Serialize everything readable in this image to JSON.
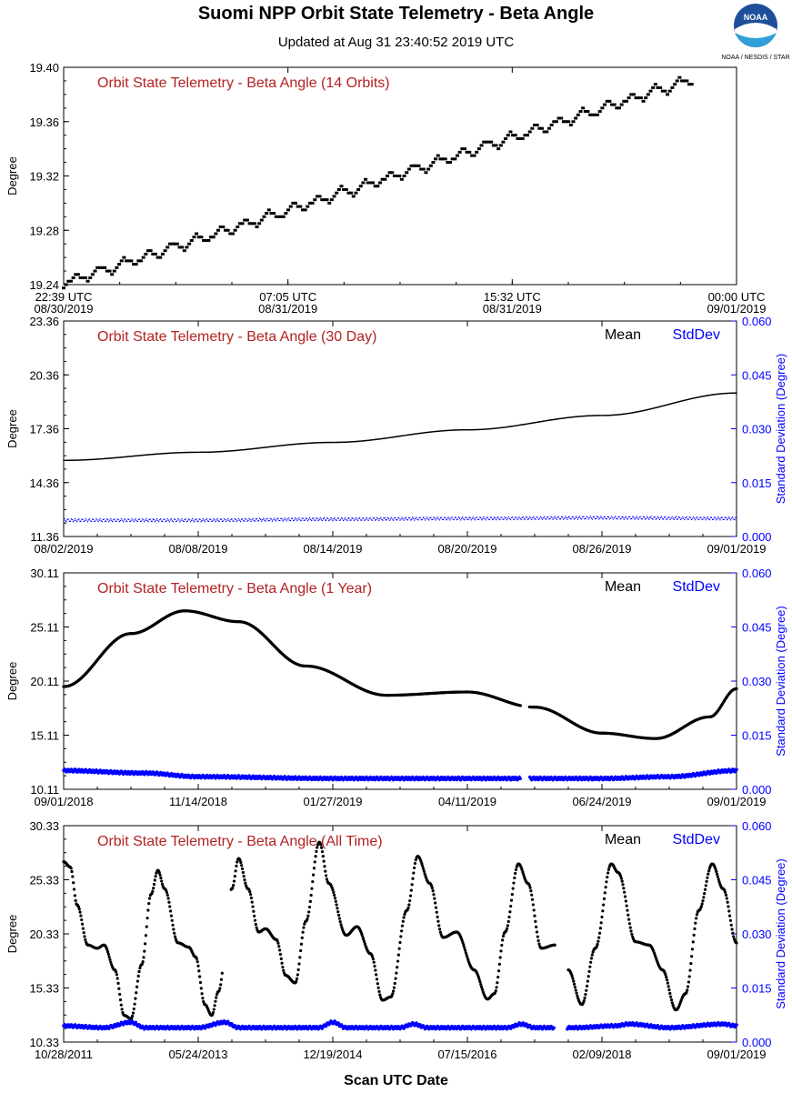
{
  "header": {
    "title": "Suomi NPP Orbit State Telemetry - Beta Angle",
    "subtitle": "Updated at Aug 31 23:40:52 2019 UTC",
    "xlabel": "Scan UTC Date",
    "logo_text": "NOAA",
    "logo_caption": "NOAA / NESDIS / STAR"
  },
  "colors": {
    "title_red": "#b22222",
    "mean": "#000000",
    "stddev": "#0000ff",
    "axis": "#000000"
  },
  "chart_data": [
    {
      "type": "scatter",
      "title": "Orbit State Telemetry - Beta Angle (14 Orbits)",
      "ylabel": "Degree",
      "ylim": [
        19.24,
        19.4
      ],
      "yticks": [
        "19.40",
        "19.36",
        "19.32",
        "19.28",
        "19.24"
      ],
      "xticks": [
        {
          "pos": 0,
          "label": [
            "22:39 UTC",
            "08/30/2019"
          ]
        },
        {
          "pos": 1,
          "label": [
            "07:05 UTC",
            "08/31/2019"
          ]
        },
        {
          "pos": 2,
          "label": [
            "15:32 UTC",
            "08/31/2019"
          ]
        },
        {
          "pos": 3,
          "label": [
            "00:00 UTC",
            "09/01/2019"
          ]
        }
      ],
      "series": [
        {
          "values": {
            "x_start": 0,
            "x_end": 2.8,
            "y_start": 19.241,
            "y_end": 19.391,
            "osc_amp": 0.004,
            "osc_cycles": 26
          }
        }
      ]
    },
    {
      "type": "scatter",
      "title": "Orbit State Telemetry - Beta Angle (30 Day)",
      "ylabel": "Degree",
      "y2label": "Standard Deviation (Degree)",
      "legend": [
        "Mean",
        "StdDev"
      ],
      "ylim": [
        11.36,
        23.36
      ],
      "y2lim": [
        0,
        0.06
      ],
      "yticks": [
        "23.36",
        "20.36",
        "17.36",
        "14.36",
        "11.36"
      ],
      "y2ticks": [
        "0.060",
        "0.045",
        "0.030",
        "0.015",
        "0.000"
      ],
      "xticks": [
        {
          "pos": 0,
          "label": [
            "08/02/2019"
          ]
        },
        {
          "pos": 1,
          "label": [
            "08/08/2019"
          ]
        },
        {
          "pos": 2,
          "label": [
            "08/14/2019"
          ]
        },
        {
          "pos": 3,
          "label": [
            "08/20/2019"
          ]
        },
        {
          "pos": 4,
          "label": [
            "08/26/2019"
          ]
        },
        {
          "pos": 5,
          "label": [
            "09/01/2019"
          ]
        }
      ],
      "mean_points": [
        [
          0,
          15.6
        ],
        [
          1,
          16.05
        ],
        [
          2,
          16.6
        ],
        [
          3,
          17.3
        ],
        [
          4,
          18.1
        ],
        [
          5,
          19.35
        ]
      ],
      "stddev_points": [
        [
          0,
          0.0045
        ],
        [
          1,
          0.0045
        ],
        [
          2,
          0.0048
        ],
        [
          3,
          0.005
        ],
        [
          4,
          0.0052
        ],
        [
          5,
          0.005
        ]
      ]
    },
    {
      "type": "scatter",
      "title": "Orbit State Telemetry - Beta Angle (1 Year)",
      "ylabel": "Degree",
      "y2label": "Standard Deviation (Degree)",
      "legend": [
        "Mean",
        "StdDev"
      ],
      "ylim": [
        10.11,
        30.11
      ],
      "y2lim": [
        0,
        0.06
      ],
      "yticks": [
        "30.11",
        "25.11",
        "20.11",
        "15.11",
        "10.11"
      ],
      "y2ticks": [
        "0.060",
        "0.045",
        "0.030",
        "0.015",
        "0.000"
      ],
      "xticks": [
        {
          "pos": 0,
          "label": [
            "09/01/2018"
          ]
        },
        {
          "pos": 1,
          "label": [
            "11/14/2018"
          ]
        },
        {
          "pos": 2,
          "label": [
            "01/27/2019"
          ]
        },
        {
          "pos": 3,
          "label": [
            "04/11/2019"
          ]
        },
        {
          "pos": 4,
          "label": [
            "06/24/2019"
          ]
        },
        {
          "pos": 5,
          "label": [
            "09/01/2019"
          ]
        }
      ],
      "mean_points": [
        [
          0,
          19.6
        ],
        [
          0.5,
          24.5
        ],
        [
          0.9,
          26.6
        ],
        [
          1.3,
          25.6
        ],
        [
          1.8,
          21.5
        ],
        [
          2.4,
          18.8
        ],
        [
          3.0,
          19.1
        ],
        [
          3.5,
          17.7
        ],
        [
          4.0,
          15.3
        ],
        [
          4.4,
          14.8
        ],
        [
          4.8,
          16.8
        ],
        [
          5.0,
          19.4
        ]
      ],
      "mean_gaps": [
        [
          3.4,
          3.46
        ]
      ],
      "stddev_points": [
        [
          0,
          0.0052
        ],
        [
          0.6,
          0.0045
        ],
        [
          1.0,
          0.0035
        ],
        [
          2.0,
          0.003
        ],
        [
          3.0,
          0.003
        ],
        [
          4.0,
          0.003
        ],
        [
          4.5,
          0.0035
        ],
        [
          5.0,
          0.0052
        ]
      ],
      "stddev_gaps": [
        [
          3.4,
          3.46
        ]
      ]
    },
    {
      "type": "scatter",
      "title": "Orbit State Telemetry - Beta Angle (All Time)",
      "ylabel": "Degree",
      "y2label": "Standard Deviation (Degree)",
      "legend": [
        "Mean",
        "StdDev"
      ],
      "ylim": [
        10.33,
        30.33
      ],
      "y2lim": [
        0,
        0.06
      ],
      "yticks": [
        "30.33",
        "25.33",
        "20.33",
        "15.33",
        "10.33"
      ],
      "y2ticks": [
        "0.060",
        "0.045",
        "0.030",
        "0.015",
        "0.000"
      ],
      "xticks": [
        {
          "pos": 0,
          "label": [
            "10/28/2011"
          ]
        },
        {
          "pos": 1,
          "label": [
            "05/24/2013"
          ]
        },
        {
          "pos": 2,
          "label": [
            "12/19/2014"
          ]
        },
        {
          "pos": 3,
          "label": [
            "07/15/2016"
          ]
        },
        {
          "pos": 4,
          "label": [
            "02/09/2018"
          ]
        },
        {
          "pos": 5,
          "label": [
            "09/01/2019"
          ]
        }
      ],
      "mean_points": [
        [
          0.0,
          27.0
        ],
        [
          0.05,
          26.5
        ],
        [
          0.1,
          23.0
        ],
        [
          0.18,
          19.3
        ],
        [
          0.25,
          19.0
        ],
        [
          0.3,
          19.3
        ],
        [
          0.38,
          17.0
        ],
        [
          0.45,
          12.8
        ],
        [
          0.5,
          12.5
        ],
        [
          0.58,
          17.5
        ],
        [
          0.65,
          24.0
        ],
        [
          0.7,
          26.2
        ],
        [
          0.75,
          24.5
        ],
        [
          0.85,
          19.5
        ],
        [
          0.93,
          19.1
        ],
        [
          0.98,
          18.2
        ],
        [
          1.05,
          13.8
        ],
        [
          1.1,
          12.8
        ],
        [
          1.15,
          15.0
        ],
        [
          1.25,
          24.5
        ],
        [
          1.3,
          27.3
        ],
        [
          1.37,
          24.5
        ],
        [
          1.45,
          20.5
        ],
        [
          1.5,
          20.8
        ],
        [
          1.58,
          19.8
        ],
        [
          1.65,
          16.5
        ],
        [
          1.72,
          15.8
        ],
        [
          1.8,
          21.5
        ],
        [
          1.9,
          28.8
        ],
        [
          1.97,
          25.0
        ],
        [
          2.1,
          20.2
        ],
        [
          2.18,
          21.0
        ],
        [
          2.28,
          18.5
        ],
        [
          2.37,
          14.2
        ],
        [
          2.43,
          14.5
        ],
        [
          2.55,
          22.5
        ],
        [
          2.63,
          27.5
        ],
        [
          2.72,
          25.0
        ],
        [
          2.82,
          20.0
        ],
        [
          2.92,
          20.5
        ],
        [
          3.05,
          17.0
        ],
        [
          3.15,
          14.3
        ],
        [
          3.2,
          14.8
        ],
        [
          3.28,
          20.5
        ],
        [
          3.38,
          26.8
        ],
        [
          3.45,
          25.0
        ],
        [
          3.55,
          19.0
        ],
        [
          3.65,
          19.3
        ]
      ],
      "mean_points_b": [
        [
          3.75,
          17.0
        ],
        [
          3.85,
          13.8
        ],
        [
          3.95,
          19.0
        ],
        [
          4.07,
          26.8
        ],
        [
          4.12,
          26.0
        ],
        [
          4.25,
          19.6
        ],
        [
          4.35,
          19.3
        ],
        [
          4.45,
          17.0
        ],
        [
          4.55,
          13.3
        ],
        [
          4.62,
          14.8
        ],
        [
          4.72,
          22.5
        ],
        [
          4.82,
          26.8
        ],
        [
          4.9,
          24.5
        ],
        [
          5.0,
          19.5
        ]
      ],
      "mean_gap": [
        [
          1.18,
          1.24
        ],
        [
          3.66,
          3.74
        ]
      ],
      "stddev_points": [
        [
          0,
          0.0045
        ],
        [
          0.3,
          0.004
        ],
        [
          0.5,
          0.0055
        ],
        [
          0.6,
          0.004
        ],
        [
          1.0,
          0.004
        ],
        [
          1.2,
          0.0055
        ],
        [
          1.3,
          0.004
        ],
        [
          1.9,
          0.004
        ],
        [
          2.0,
          0.0055
        ],
        [
          2.1,
          0.004
        ],
        [
          2.5,
          0.004
        ],
        [
          2.6,
          0.005
        ],
        [
          2.7,
          0.004
        ],
        [
          3.3,
          0.004
        ],
        [
          3.4,
          0.005
        ],
        [
          3.5,
          0.004
        ],
        [
          3.8,
          0.004
        ],
        [
          4.1,
          0.0045
        ],
        [
          4.2,
          0.005
        ],
        [
          4.5,
          0.004
        ],
        [
          4.9,
          0.005
        ],
        [
          5.0,
          0.0045
        ]
      ],
      "stddev_gaps": [
        [
          3.65,
          3.74
        ]
      ]
    }
  ]
}
